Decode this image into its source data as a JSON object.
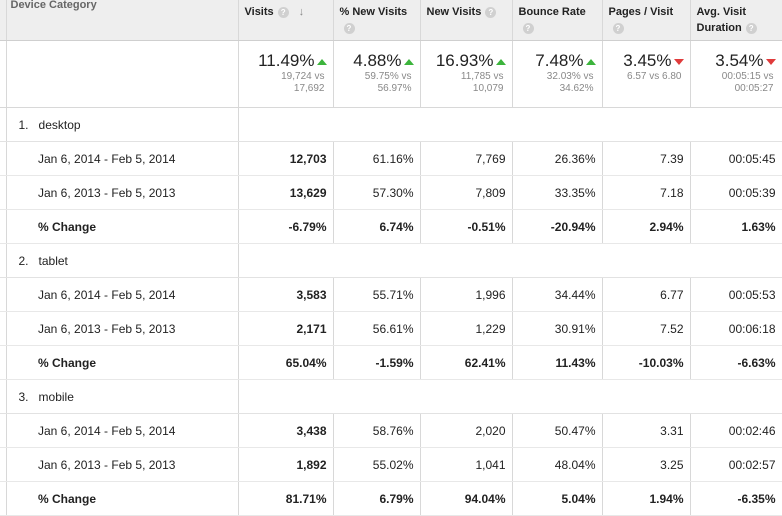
{
  "header": {
    "dimension": "Device Category",
    "columns": [
      {
        "key": "visits",
        "title": "Visits",
        "sort": "desc"
      },
      {
        "key": "new_visits_pct",
        "title": "% New Visits"
      },
      {
        "key": "new_visits",
        "title": "New Visits"
      },
      {
        "key": "bounce_rate",
        "title": "Bounce Rate"
      },
      {
        "key": "pages_visit",
        "title": "Pages / Visit"
      },
      {
        "key": "avg_duration",
        "title": "Avg. Visit Duration"
      }
    ]
  },
  "summary": [
    {
      "value": "11.49%",
      "trend": "up",
      "l1": "19,724 vs",
      "l2": "17,692"
    },
    {
      "value": "4.88%",
      "trend": "up",
      "l1": "59.75% vs",
      "l2": "56.97%"
    },
    {
      "value": "16.93%",
      "trend": "up",
      "l1": "11,785 vs",
      "l2": "10,079"
    },
    {
      "value": "7.48%",
      "trend": "up",
      "l1": "32.03% vs",
      "l2": "34.62%"
    },
    {
      "value": "3.45%",
      "trend": "down",
      "l1": "6.57 vs 6.80",
      "l2": ""
    },
    {
      "value": "3.54%",
      "trend": "down",
      "l1": "00:05:15 vs",
      "l2": "00:05:27"
    }
  ],
  "groups": [
    {
      "index": "1.",
      "name": "desktop",
      "rows": [
        {
          "label": "Jan 6, 2014 - Feb 5, 2014",
          "vals": [
            "12,703",
            "61.16%",
            "7,769",
            "26.36%",
            "7.39",
            "00:05:45"
          ]
        },
        {
          "label": "Jan 6, 2013 - Feb 5, 2013",
          "vals": [
            "13,629",
            "57.30%",
            "7,809",
            "33.35%",
            "7.18",
            "00:05:39"
          ]
        },
        {
          "label": "% Change",
          "vals": [
            "-6.79%",
            "6.74%",
            "-0.51%",
            "-20.94%",
            "2.94%",
            "1.63%"
          ]
        }
      ]
    },
    {
      "index": "2.",
      "name": "tablet",
      "rows": [
        {
          "label": "Jan 6, 2014 - Feb 5, 2014",
          "vals": [
            "3,583",
            "55.71%",
            "1,996",
            "34.44%",
            "6.77",
            "00:05:53"
          ]
        },
        {
          "label": "Jan 6, 2013 - Feb 5, 2013",
          "vals": [
            "2,171",
            "56.61%",
            "1,229",
            "30.91%",
            "7.52",
            "00:06:18"
          ]
        },
        {
          "label": "% Change",
          "vals": [
            "65.04%",
            "-1.59%",
            "62.41%",
            "11.43%",
            "-10.03%",
            "-6.63%"
          ]
        }
      ]
    },
    {
      "index": "3.",
      "name": "mobile",
      "rows": [
        {
          "label": "Jan 6, 2014 - Feb 5, 2014",
          "vals": [
            "3,438",
            "58.76%",
            "2,020",
            "50.47%",
            "3.31",
            "00:02:46"
          ]
        },
        {
          "label": "Jan 6, 2013 - Feb 5, 2013",
          "vals": [
            "1,892",
            "55.02%",
            "1,041",
            "48.04%",
            "3.25",
            "00:02:57"
          ]
        },
        {
          "label": "% Change",
          "vals": [
            "81.71%",
            "6.79%",
            "94.04%",
            "5.04%",
            "1.94%",
            "-6.35%"
          ]
        }
      ]
    }
  ],
  "icons": {
    "help": "?",
    "sort": "↓"
  },
  "colors": {
    "up": "#3cb43c",
    "down": "#e03b3b",
    "header_bg": "#eeeeee"
  }
}
